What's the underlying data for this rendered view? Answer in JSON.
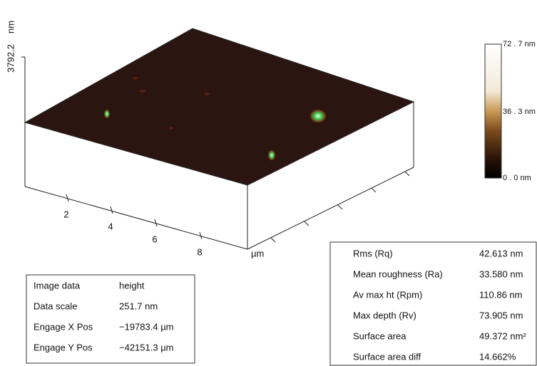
{
  "z_axis": {
    "unit": "nm",
    "max_label": "3792.2"
  },
  "x_axis": {
    "ticks": [
      "2",
      "4",
      "6",
      "8"
    ],
    "unit": "µm"
  },
  "colorbar": {
    "labels": [
      "72 . 7 nm",
      "36 . 3 nm",
      "0 . 0 nm"
    ]
  },
  "image_info": {
    "rows": [
      [
        "Image data",
        "height"
      ],
      [
        "Data scale",
        "251.7 nm"
      ],
      [
        "Engage X Pos",
        "−19783.4 µm"
      ],
      [
        "Engage Y Pos",
        "−42151.3 µm"
      ]
    ]
  },
  "roughness": {
    "rows": [
      [
        "Rms (Rq)",
        "42.613 nm"
      ],
      [
        "Mean roughness (Ra)",
        "33.580 nm"
      ],
      [
        "Av max ht (Rpm)",
        "110.86 nm"
      ],
      [
        "Max depth (Rv)",
        "73.905 nm"
      ],
      [
        "Surface area",
        "49.372 nm²"
      ],
      [
        "Surface area diff",
        "14.662%"
      ]
    ]
  }
}
